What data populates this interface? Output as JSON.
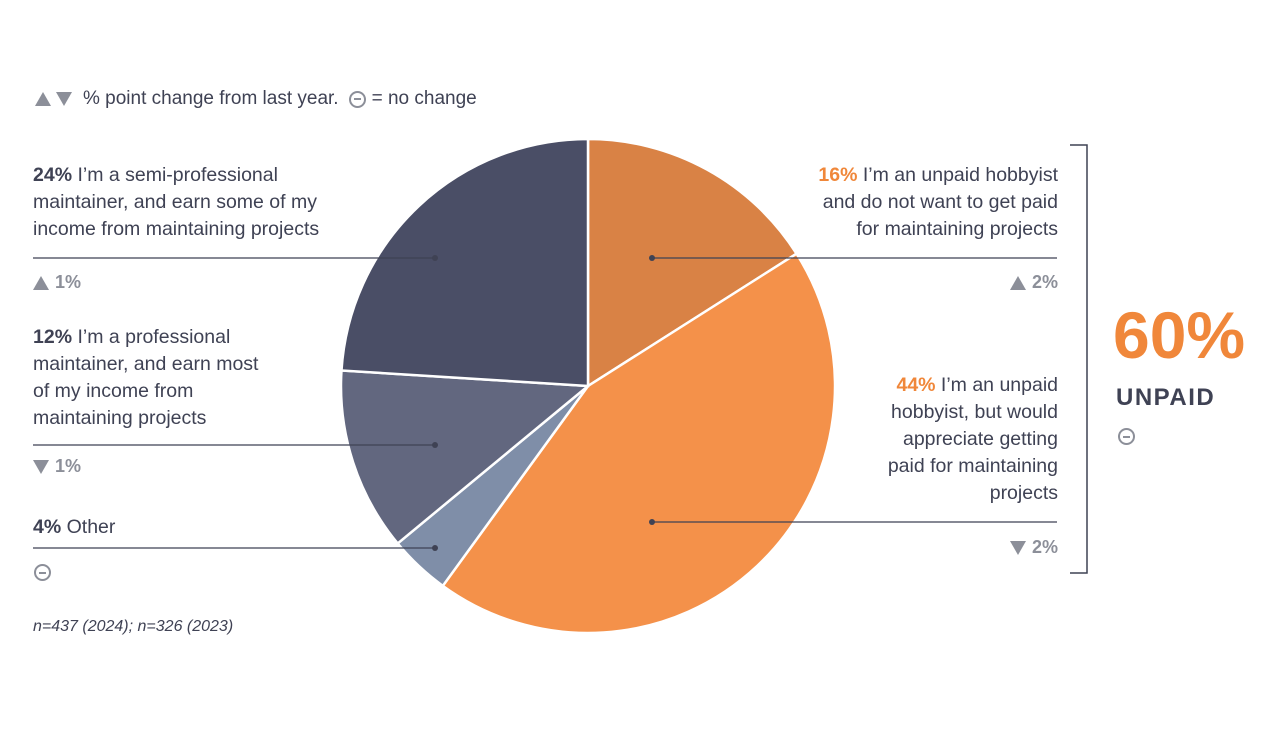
{
  "chart_data": {
    "type": "pie",
    "slices": [
      {
        "label": "I’m an unpaid hobbyist and do not want to get paid for maintaining projects",
        "value": 16,
        "pct_text": "16%",
        "color": "#d98245",
        "change": "2%",
        "change_dir": "up"
      },
      {
        "label": "I’m an unpaid hobbyist, but would appreciate getting paid for maintaining projects",
        "value": 44,
        "pct_text": "44%",
        "color": "#f4914a",
        "change": "2%",
        "change_dir": "down"
      },
      {
        "label": "Other",
        "value": 4,
        "pct_text": "4%",
        "color": "#7f8ea8",
        "change": "",
        "change_dir": "none"
      },
      {
        "label": "I’m a professional maintainer, and earn most of my income from maintaining projects",
        "value": 12,
        "pct_text": "12%",
        "color": "#62677f",
        "change": "1%",
        "change_dir": "down"
      },
      {
        "label": "I’m a semi-professional maintainer, and earn some of my income from maintaining projects",
        "value": 24,
        "pct_text": "24%",
        "color": "#4a4e66",
        "change": "1%",
        "change_dir": "up"
      }
    ]
  },
  "legend_note": {
    "text": "% point change from last year.",
    "no_change_text": "= no change"
  },
  "labels": {
    "hobby_no_pay": {
      "pct": "16%",
      "lines": [
        "I’m an unpaid hobbyist",
        "and do not want to get paid",
        "for maintaining projects"
      ],
      "change": "2%"
    },
    "hobby_want_pay": {
      "pct": "44%",
      "lines": [
        "I’m an unpaid",
        "hobbyist, but would",
        "appreciate getting",
        "paid for maintaining",
        "projects"
      ],
      "change": "2%"
    },
    "semi_pro": {
      "pct": "24%",
      "lines": [
        "I’m a semi-professional",
        "maintainer, and earn some of my",
        "income from maintaining projects"
      ],
      "change": "1%"
    },
    "pro": {
      "pct": "12%",
      "lines": [
        "I’m a professional",
        "maintainer, and earn most",
        "of my income from",
        "maintaining projects"
      ],
      "change": "1%"
    },
    "other": {
      "pct": "4%",
      "lines": [
        "Other"
      ]
    }
  },
  "summary": {
    "value": "60%",
    "label": "UNPAID"
  },
  "sample_note": "n=437 (2024); n=326 (2023)",
  "colors": {
    "accent_orange": "#f0873a",
    "text_dark": "#3f4254",
    "change_gray": "#8c8f99"
  }
}
